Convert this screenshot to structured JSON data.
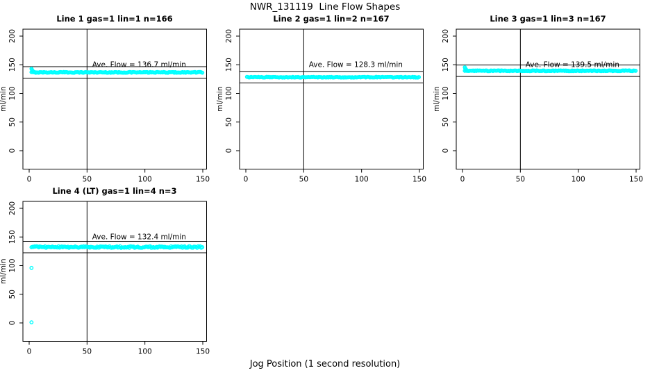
{
  "title": "NWR_131119  Line Flow Shapes",
  "xlabel": "Jog Position (1 second resolution)",
  "ylabel": "ml/min",
  "colors": {
    "point": "#00ffff",
    "axis": "#000000",
    "background": "#ffffff"
  },
  "axes": {
    "x_ticks": [
      0,
      50,
      100,
      150
    ],
    "y_ticks": [
      0,
      50,
      100,
      150,
      200
    ],
    "vline_x": 50,
    "x_range": [
      -5,
      153
    ],
    "y_range": [
      -31,
      212
    ]
  },
  "chart_data": [
    {
      "type": "scatter",
      "title": "Line 1 gas=1 lin=1 n=166",
      "n": 166,
      "ave_flow": 136.7,
      "annotation": "Ave. Flow =  136.7  ml/min",
      "hlines": [
        126.7,
        146.7
      ],
      "x_range": [
        2,
        150
      ],
      "jitter": 0.7,
      "lead_points": [
        [
          2,
          143.0
        ],
        [
          2.4,
          141.3
        ],
        [
          2.8,
          139.8
        ],
        [
          3.4,
          138.6
        ]
      ],
      "outliers": []
    },
    {
      "type": "scatter",
      "title": "Line 2 gas=1 lin=2 n=167",
      "n": 167,
      "ave_flow": 128.3,
      "annotation": "Ave. Flow =  128.3  ml/min",
      "hlines": [
        118.3,
        138.3
      ],
      "x_range": [
        1,
        150
      ],
      "jitter": 0.7,
      "lead_points": [],
      "outliers": []
    },
    {
      "type": "scatter",
      "title": "Line 3 gas=1 lin=3 n=167",
      "n": 167,
      "ave_flow": 139.5,
      "annotation": "Ave. Flow =  139.5  ml/min",
      "hlines": [
        129.5,
        149.5
      ],
      "x_range": [
        2,
        150
      ],
      "jitter": 0.6,
      "lead_points": [
        [
          2,
          145.5
        ],
        [
          2.4,
          143.8
        ],
        [
          2.8,
          142.2
        ],
        [
          3.4,
          141.0
        ]
      ],
      "outliers": []
    },
    {
      "type": "scatter",
      "title": "Line 4 (LT) gas=1 lin=4 n=3",
      "n": 3,
      "ave_flow": 132.4,
      "annotation": "Ave. Flow =  132.4  ml/min",
      "hlines": [
        122.4,
        142.4
      ],
      "x_range": [
        2,
        150
      ],
      "jitter": 1.4,
      "lead_points": [],
      "outliers": [
        [
          2,
          96
        ],
        [
          2,
          1
        ]
      ]
    }
  ]
}
